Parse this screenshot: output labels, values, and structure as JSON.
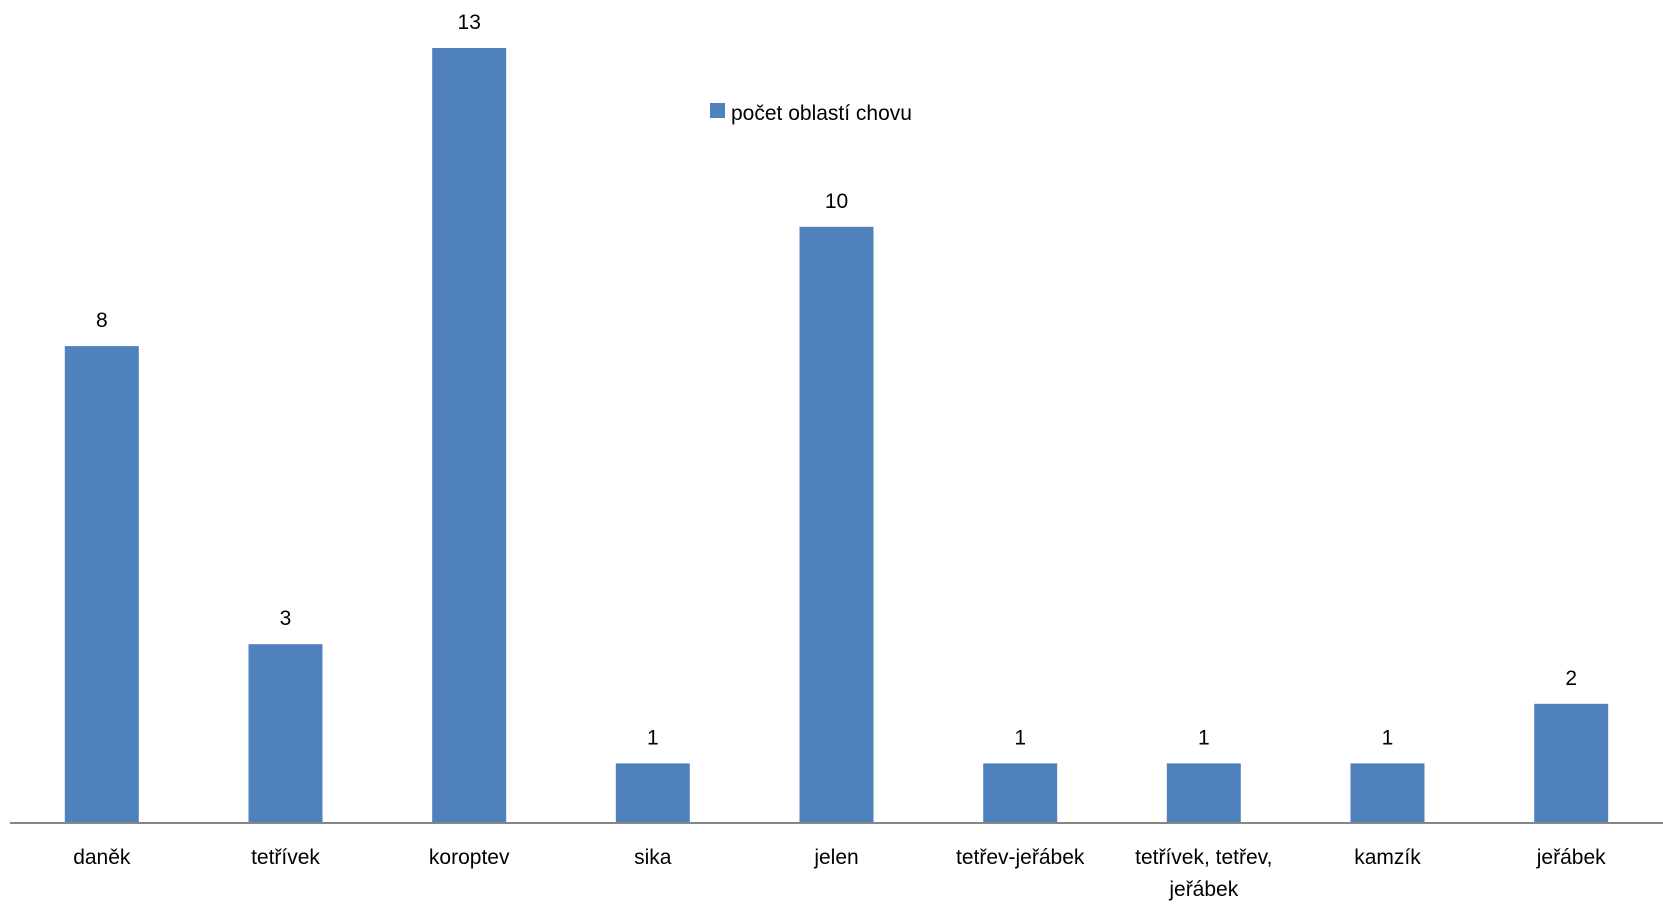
{
  "chart_data": {
    "type": "bar",
    "categories": [
      "daněk",
      "tetřívek",
      "koroptev",
      "sika",
      "jelen",
      "tetřev-jeřábek",
      "tetřívek, tetřev, jeřábek",
      "kamzík",
      "jeřábek"
    ],
    "category_lines": [
      [
        "daněk"
      ],
      [
        "tetřívek"
      ],
      [
        "koroptev"
      ],
      [
        "sika"
      ],
      [
        "jelen"
      ],
      [
        "tetřev-jeřábek"
      ],
      [
        "tetřívek, tetřev,",
        "jeřábek"
      ],
      [
        "kamzík"
      ],
      [
        "jeřábek"
      ]
    ],
    "series": [
      {
        "name": "počet oblastí chovu",
        "values": [
          8,
          3,
          13,
          1,
          10,
          1,
          1,
          1,
          2
        ],
        "color": "#4F81BD"
      }
    ],
    "data_labels": true,
    "ylim": [
      0,
      13
    ],
    "grid": false,
    "legend_position": "top-center",
    "axis_color": "#868686"
  }
}
